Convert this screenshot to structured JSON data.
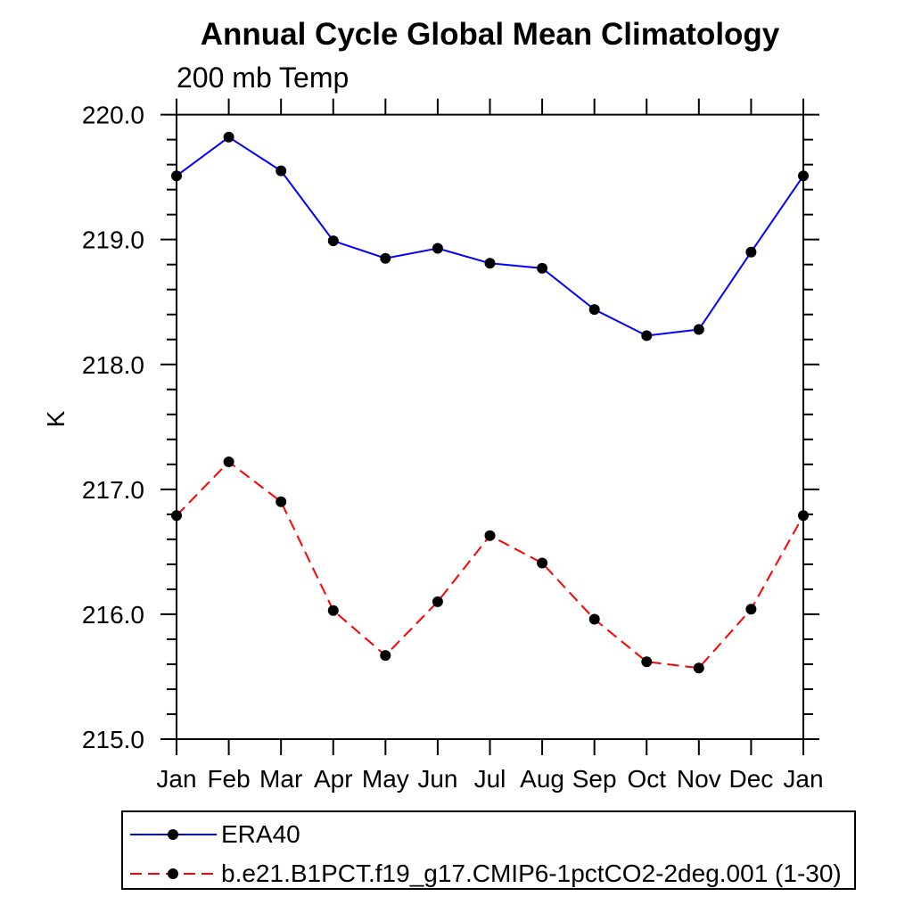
{
  "chart_data": {
    "type": "line",
    "title": "Annual Cycle Global Mean Climatology",
    "subtitle": "200 mb Temp",
    "ylabel": "K",
    "xlabel": "",
    "ylim": [
      215.0,
      220.0
    ],
    "ytick_major_values": [
      215.0,
      216.0,
      217.0,
      218.0,
      219.0,
      220.0
    ],
    "ytick_major_labels": [
      "215.0",
      "216.0",
      "217.0",
      "218.0",
      "219.0",
      "220.0"
    ],
    "ytick_minor_step": 0.2,
    "categories": [
      "Jan",
      "Feb",
      "Mar",
      "Apr",
      "May",
      "Jun",
      "Jul",
      "Aug",
      "Sep",
      "Oct",
      "Nov",
      "Dec",
      "Jan"
    ],
    "grid": false,
    "legend_position": "bottom-left",
    "series": [
      {
        "name": "ERA40",
        "color": "#0000ff",
        "line_style": "solid",
        "marker": "circle",
        "marker_color": "#000000",
        "values": [
          219.51,
          219.82,
          219.55,
          218.99,
          218.85,
          218.93,
          218.81,
          218.77,
          218.44,
          218.23,
          218.28,
          218.9,
          219.51
        ]
      },
      {
        "name": "b.e21.B1PCT.f19_g17.CMIP6-1pctCO2-2deg.001 (1-30)",
        "color": "#ff0000",
        "line_style": "dashed",
        "marker": "circle",
        "marker_color": "#000000",
        "values": [
          216.79,
          217.22,
          216.9,
          216.03,
          215.67,
          216.1,
          216.63,
          216.41,
          215.96,
          215.62,
          215.57,
          216.04,
          216.79
        ]
      }
    ]
  },
  "colors": {
    "axis": "#000000",
    "text": "#000000",
    "background": "#ffffff",
    "era40_line": "#0000ff",
    "model_line": "#ff0000",
    "marker": "#000000"
  }
}
